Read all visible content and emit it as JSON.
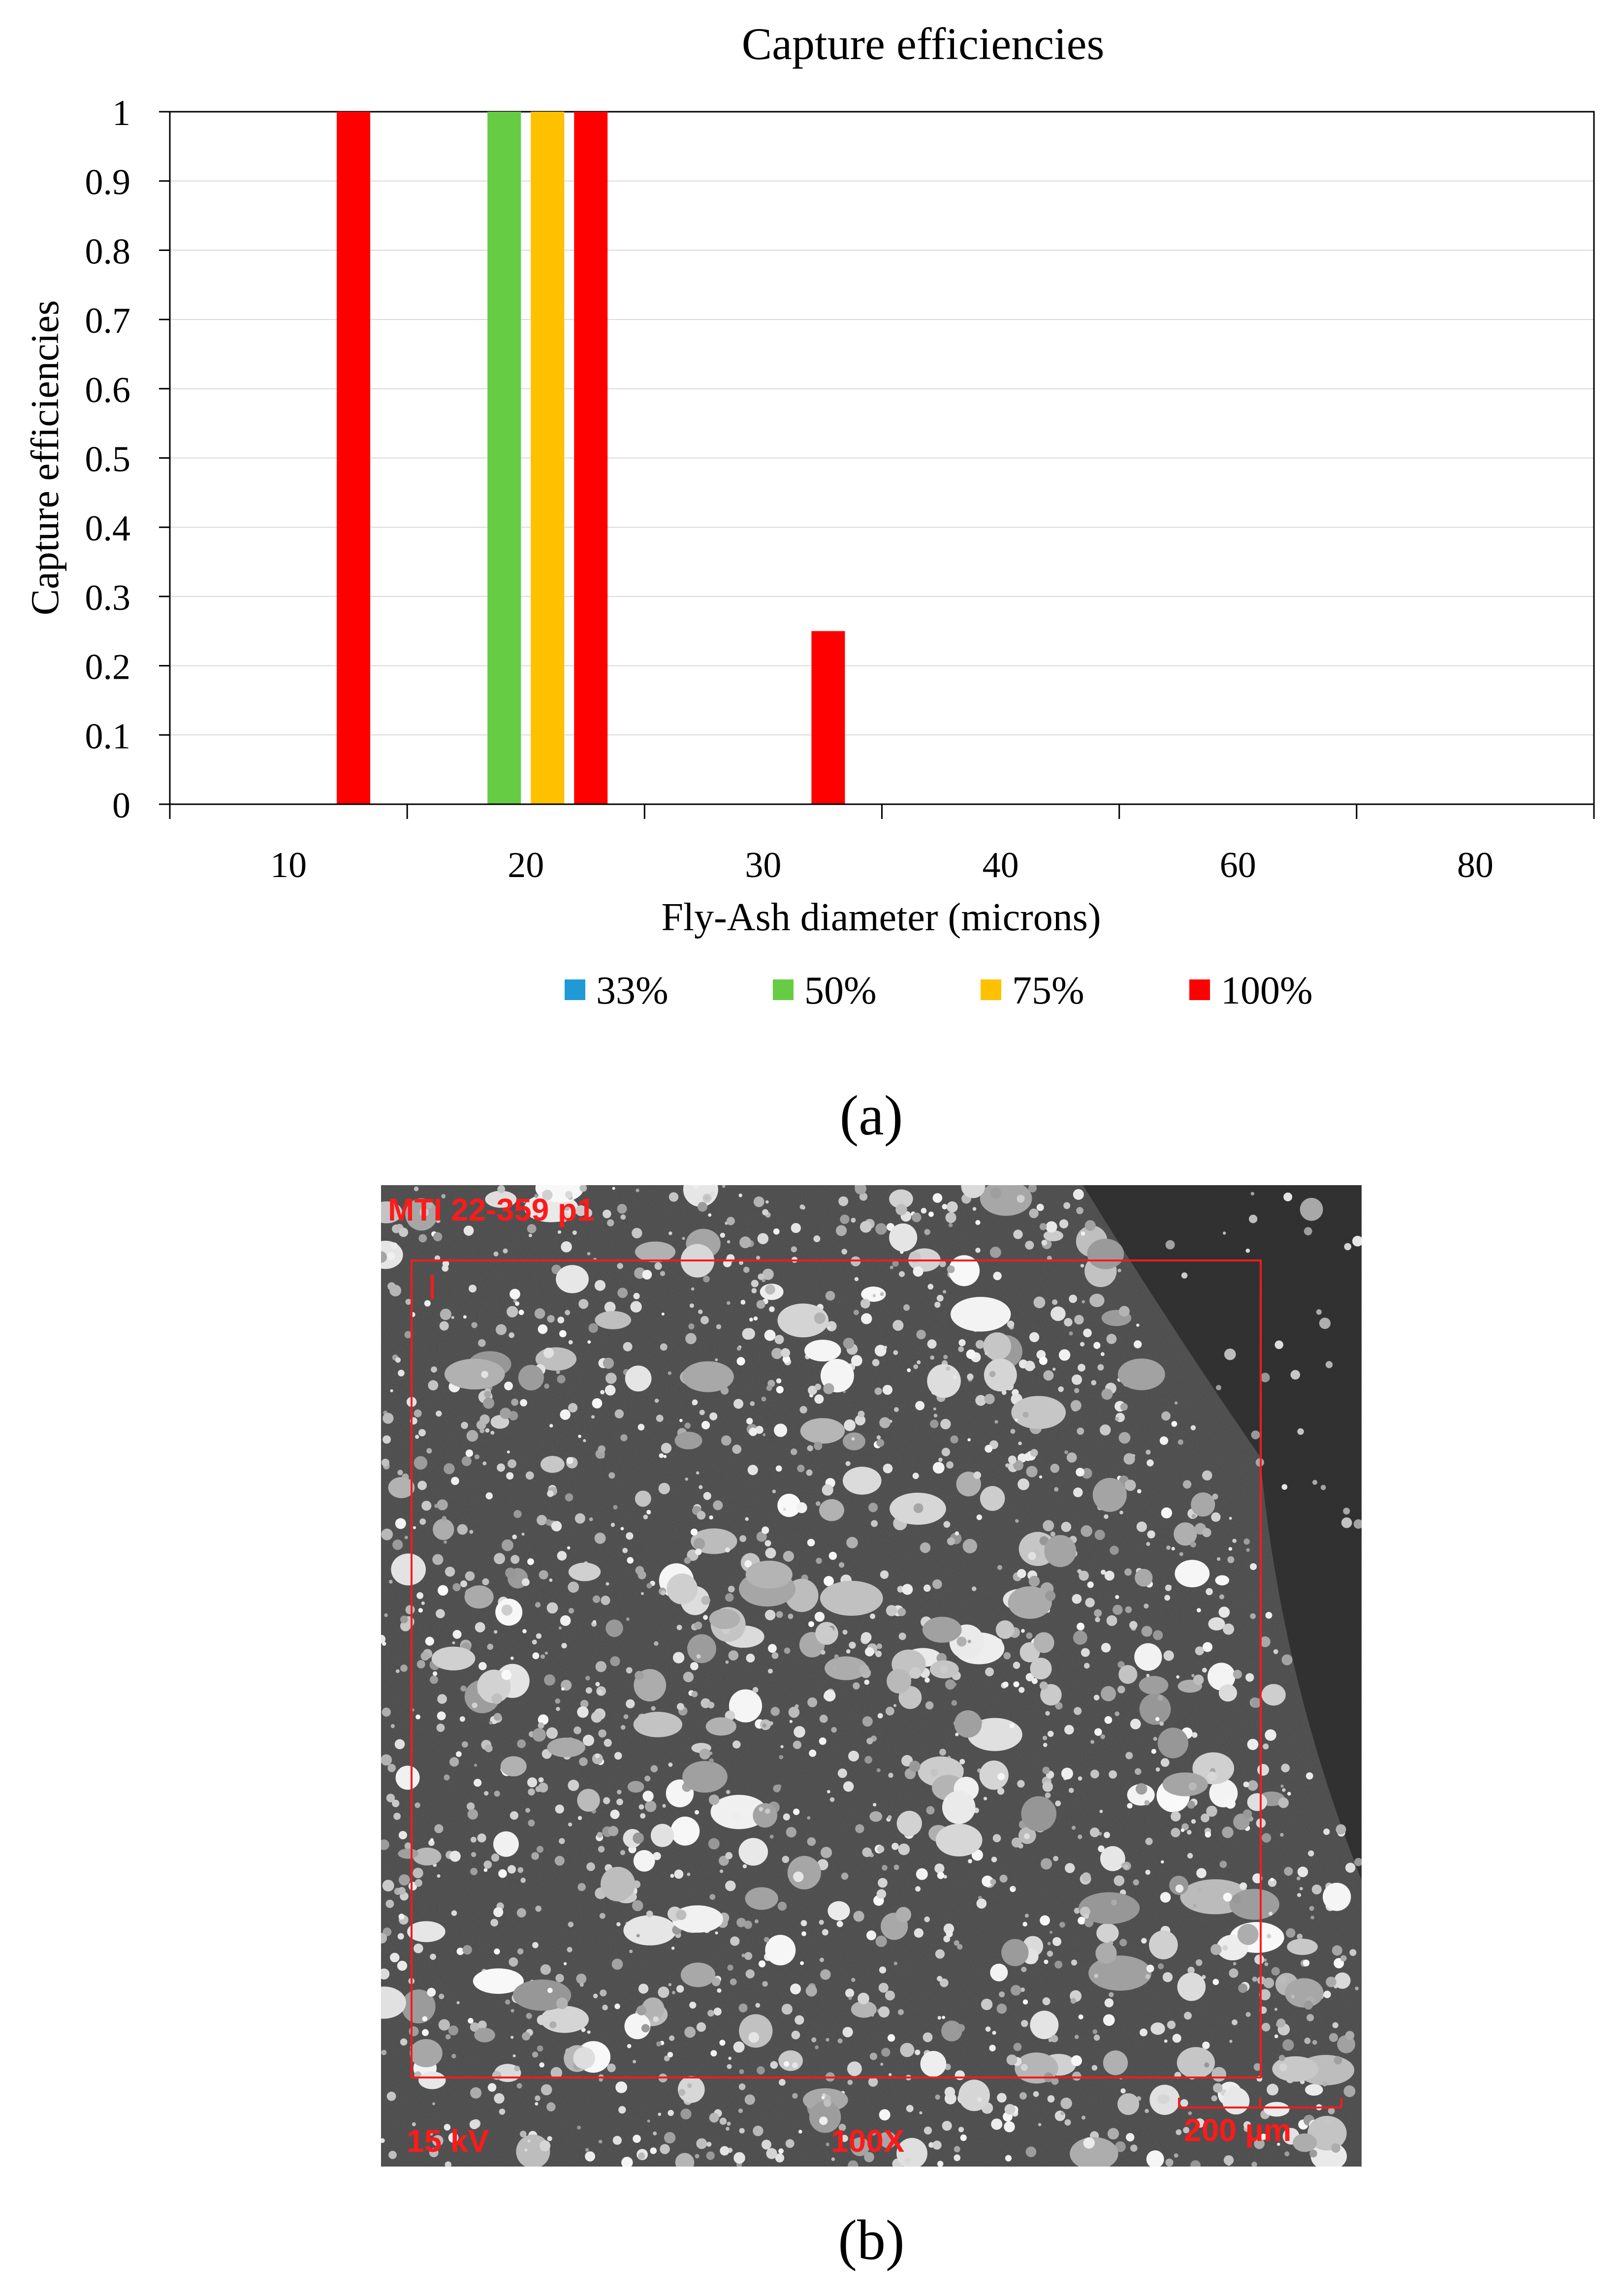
{
  "chart_data": {
    "type": "bar",
    "title": "Capture efficiencies",
    "xlabel": "Fly-Ash diameter (microns)",
    "ylabel": "Capture efficiencies",
    "categories": [
      "10",
      "20",
      "30",
      "40",
      "60",
      "80"
    ],
    "yticks": [
      "0",
      "0.1",
      "0.2",
      "0.3",
      "0.4",
      "0.5",
      "0.6",
      "0.7",
      "0.8",
      "0.9",
      "1"
    ],
    "ylim": [
      0,
      1
    ],
    "grid": true,
    "legend_position": "bottom",
    "series": [
      {
        "name": "33%",
        "color": "#1f9ad6",
        "values": [
          0,
          0,
          0,
          0,
          0,
          0
        ]
      },
      {
        "name": "50%",
        "color": "#66cc44",
        "values": [
          0,
          1,
          0,
          0,
          0,
          0
        ]
      },
      {
        "name": "75%",
        "color": "#ffc000",
        "values": [
          0,
          1,
          0,
          0,
          0,
          0
        ]
      },
      {
        "name": "100%",
        "color": "#ff0000",
        "values": [
          1,
          1,
          0.25,
          0,
          0,
          0
        ]
      }
    ]
  },
  "captions": {
    "a": "(a)",
    "b": "(b)"
  },
  "micrograph": {
    "sample_id": "MTI 22-359 p1",
    "voltage": "15 kV",
    "magnification": "100X",
    "scale_bar": "200 µm",
    "annotation_colors": {
      "label": "#ff1a1a",
      "frame": "#ff1a1a"
    }
  }
}
